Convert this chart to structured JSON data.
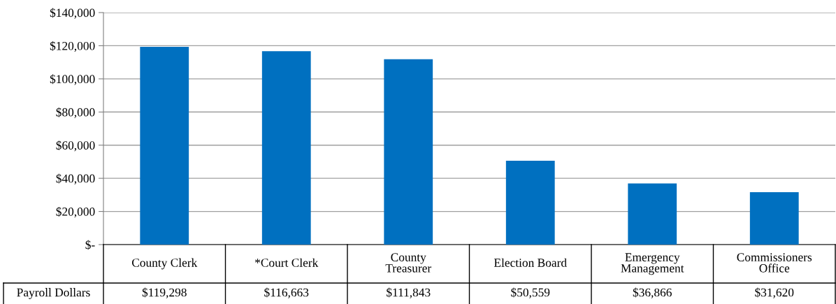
{
  "chart_data": {
    "type": "bar",
    "categories": [
      "County Clerk",
      "*Court Clerk",
      "County Treasurer",
      "Election Board",
      "Emergency Management",
      "Commissioners Office"
    ],
    "series": [
      {
        "name": "Payroll Dollars",
        "color": "#0070c0",
        "values": [
          119298,
          116663,
          111843,
          50559,
          36866,
          31620
        ],
        "value_labels": [
          "$119,298",
          "$116,663",
          "$111,843",
          "$50,559",
          "$36,866",
          "$31,620"
        ]
      }
    ],
    "ylim": [
      0,
      140000
    ],
    "yticks": [
      {
        "value": 0,
        "label": "$-"
      },
      {
        "value": 20000,
        "label": "$20,000"
      },
      {
        "value": 40000,
        "label": "$40,000"
      },
      {
        "value": 60000,
        "label": "$60,000"
      },
      {
        "value": 80000,
        "label": "$80,000"
      },
      {
        "value": 100000,
        "label": "$100,000"
      },
      {
        "value": 120000,
        "label": "$120,000"
      },
      {
        "value": 140000,
        "label": "$140,000"
      }
    ],
    "grid": "y",
    "legend": false
  }
}
